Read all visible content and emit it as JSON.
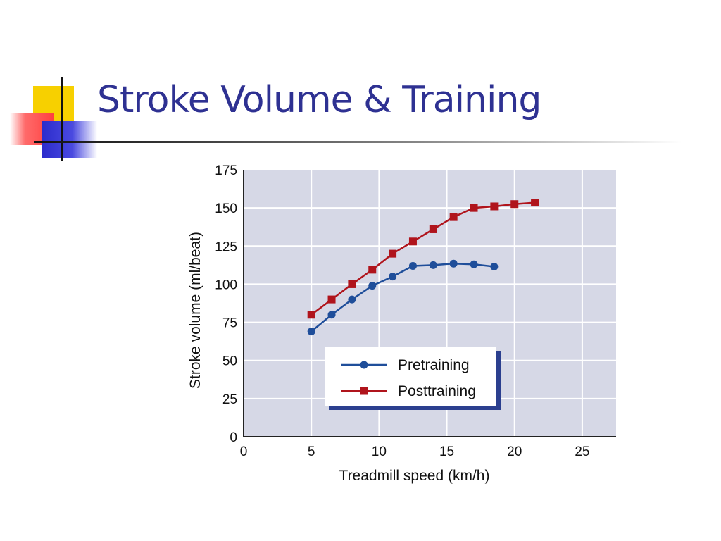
{
  "slide": {
    "title": "Stroke Volume & Training"
  },
  "colors": {
    "title": "#2e3192",
    "plot_background": "#d6d8e6",
    "grid": "#ffffff",
    "pretraining": "#1f4e9a",
    "posttraining": "#b0141c",
    "legend_shadow": "#2b3f8f"
  },
  "chart_data": {
    "type": "line",
    "xlabel": "Treadmill speed (km/h)",
    "ylabel": "Stroke volume (ml/beat)",
    "xlim": [
      0,
      27.5
    ],
    "ylim": [
      0,
      175
    ],
    "xticks": [
      0,
      5,
      10,
      15,
      20,
      25
    ],
    "yticks": [
      0,
      25,
      50,
      75,
      100,
      125,
      150,
      175
    ],
    "grid": true,
    "legend_position": "bottom-center",
    "series": [
      {
        "name": "Pretraining",
        "marker": "circle",
        "x": [
          5,
          6.5,
          8,
          9.5,
          11,
          12.5,
          14,
          15.5,
          17,
          18.5
        ],
        "y": [
          69,
          80,
          90,
          99,
          105,
          112,
          112.5,
          113.5,
          113,
          111.5
        ]
      },
      {
        "name": "Posttraining",
        "marker": "square",
        "x": [
          5,
          6.5,
          8,
          9.5,
          11,
          12.5,
          14,
          15.5,
          17,
          18.5,
          20,
          21.5
        ],
        "y": [
          80,
          90,
          100,
          109.5,
          120,
          128,
          136,
          144,
          150,
          151,
          152.5,
          153.5
        ]
      }
    ]
  }
}
